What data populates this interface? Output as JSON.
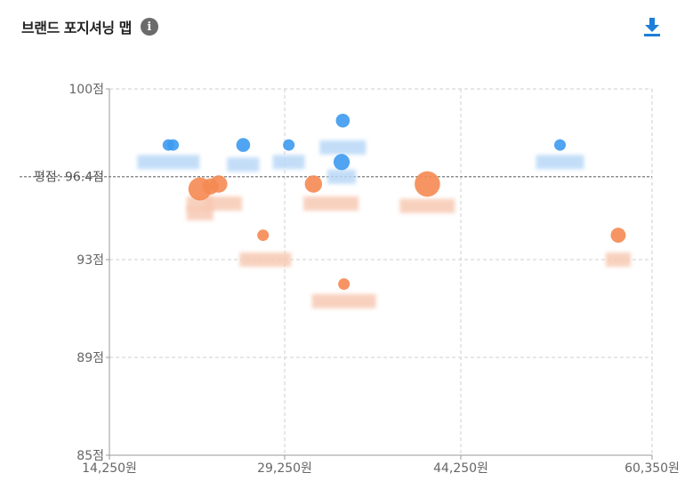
{
  "header": {
    "title": "브랜드 포지셔닝 맵",
    "info_icon": "info-icon",
    "download_icon": "download-icon"
  },
  "colors": {
    "blue": "#3d9af0",
    "orange": "#f58a52",
    "grid": "#cfcfcf",
    "avg_line": "#7a7a7a",
    "axis": "#999999"
  },
  "chart_data": {
    "type": "scatter",
    "title": "",
    "xlabel": "",
    "ylabel": "",
    "xlim": [
      14250,
      60350
    ],
    "ylim": [
      85,
      100
    ],
    "x_ticks": [
      14250,
      29250,
      44250,
      60350
    ],
    "x_tick_labels": [
      "14,250원",
      "29,250원",
      "44,250원",
      "60,350원"
    ],
    "y_ticks": [
      85,
      89,
      93,
      100
    ],
    "y_tick_labels": [
      "85점",
      "89점",
      "93점",
      "100점"
    ],
    "avg_line": {
      "value": 96.4,
      "label": "평점: 96.4점"
    },
    "grid": true,
    "series": [
      {
        "color": "blue",
        "points": [
          {
            "x": 19300,
            "y": 97.7,
            "size": 1
          },
          {
            "x": 19700,
            "y": 97.7,
            "size": 1
          },
          {
            "x": 25700,
            "y": 97.7,
            "size": 1.2
          },
          {
            "x": 29600,
            "y": 97.7,
            "size": 1
          },
          {
            "x": 34200,
            "y": 98.7,
            "size": 1.2
          },
          {
            "x": 34100,
            "y": 97.0,
            "size": 1.4
          },
          {
            "x": 52600,
            "y": 97.7,
            "size": 1
          }
        ]
      },
      {
        "color": "orange",
        "points": [
          {
            "x": 22000,
            "y": 95.9,
            "size": 2
          },
          {
            "x": 22900,
            "y": 96.0,
            "size": 1.4
          },
          {
            "x": 23600,
            "y": 96.1,
            "size": 1.5
          },
          {
            "x": 31700,
            "y": 96.1,
            "size": 1.5
          },
          {
            "x": 41400,
            "y": 96.1,
            "size": 2.2
          },
          {
            "x": 27400,
            "y": 94.0,
            "size": 1
          },
          {
            "x": 34300,
            "y": 92.0,
            "size": 1
          },
          {
            "x": 57500,
            "y": 94.0,
            "size": 1.3
          }
        ]
      }
    ],
    "blurred_labels": [
      {
        "x": 19300,
        "y": 97.0,
        "color": "blue",
        "w": 70
      },
      {
        "x": 25700,
        "y": 96.9,
        "color": "blue",
        "w": 36
      },
      {
        "x": 29600,
        "y": 97.0,
        "color": "blue",
        "w": 36
      },
      {
        "x": 34200,
        "y": 97.6,
        "color": "blue",
        "w": 52
      },
      {
        "x": 34100,
        "y": 96.4,
        "color": "blue",
        "w": 32
      },
      {
        "x": 52600,
        "y": 97.0,
        "color": "blue",
        "w": 54
      },
      {
        "x": 22000,
        "y": 95.3,
        "color": "orange",
        "w": 30
      },
      {
        "x": 24000,
        "y": 95.3,
        "color": "orange",
        "w": 42
      },
      {
        "x": 22000,
        "y": 94.9,
        "color": "orange",
        "w": 30
      },
      {
        "x": 33200,
        "y": 95.3,
        "color": "orange",
        "w": 62
      },
      {
        "x": 41400,
        "y": 95.2,
        "color": "orange",
        "w": 62
      },
      {
        "x": 27600,
        "y": 93.0,
        "color": "orange",
        "w": 58
      },
      {
        "x": 34300,
        "y": 91.3,
        "color": "orange",
        "w": 72
      },
      {
        "x": 57500,
        "y": 93.0,
        "color": "orange",
        "w": 28
      }
    ]
  }
}
